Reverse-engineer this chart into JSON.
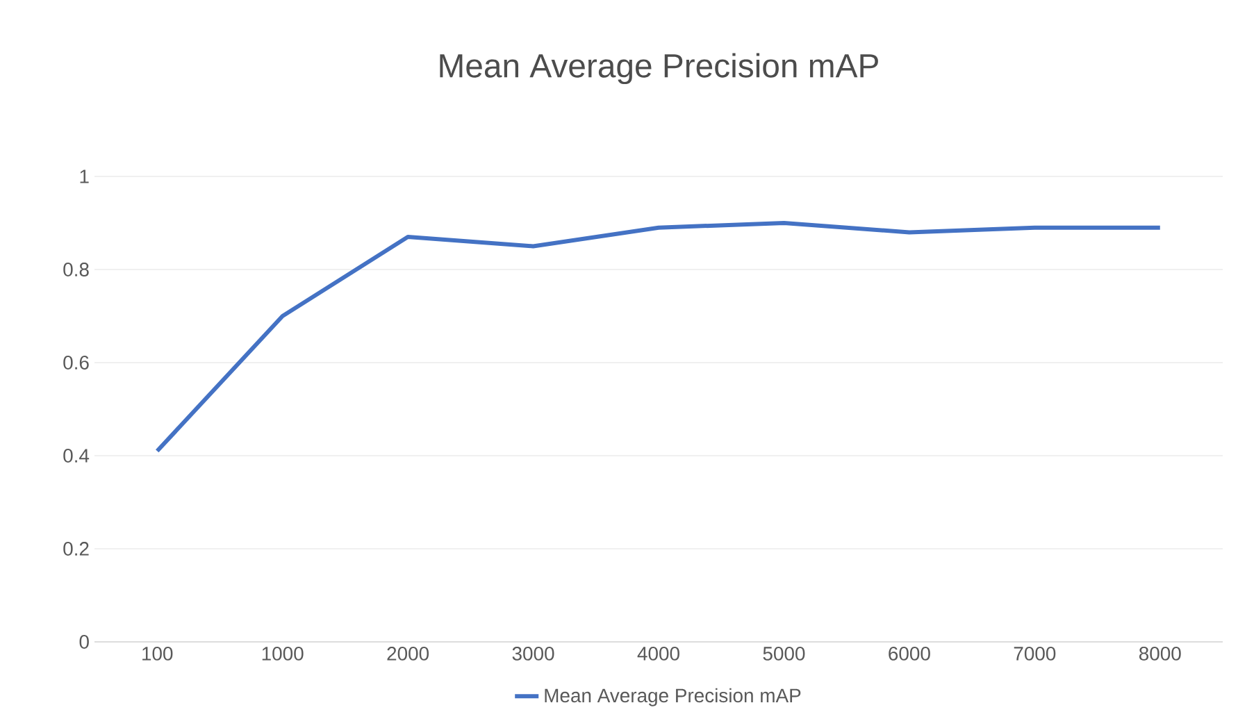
{
  "chart_data": {
    "type": "line",
    "title": "Mean Average Precision mAP",
    "categories": [
      "100",
      "1000",
      "2000",
      "3000",
      "4000",
      "5000",
      "6000",
      "7000",
      "8000"
    ],
    "series": [
      {
        "name": "Mean Average Precision mAP",
        "color": "#4472c4",
        "values": [
          0.41,
          0.7,
          0.87,
          0.85,
          0.89,
          0.9,
          0.88,
          0.89,
          0.89
        ]
      }
    ],
    "ylim": [
      0,
      1
    ],
    "yticks": [
      0,
      0.2,
      0.4,
      0.6,
      0.8,
      1
    ],
    "grid": "y",
    "legend": "bottom",
    "marker": "none",
    "line_style": "solid"
  }
}
